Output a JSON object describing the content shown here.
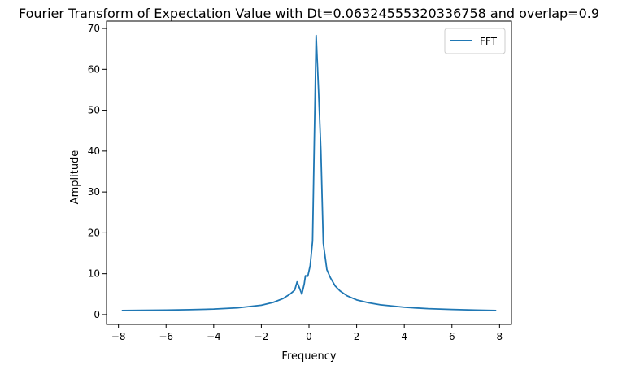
{
  "chart_data": {
    "type": "line",
    "title": "Fourier Transform of Expectation Value with Dt=0.06324555320336758 and overlap=0.9",
    "xlabel": "Frequency",
    "ylabel": "Amplitude",
    "xlim": [
      -8.5,
      8.5
    ],
    "ylim": [
      -2.4,
      71.8
    ],
    "x_ticks": [
      -8,
      -6,
      -4,
      -2,
      0,
      2,
      4,
      6,
      8
    ],
    "x_tick_labels": [
      "−8",
      "−6",
      "−4",
      "−2",
      "0",
      "2",
      "4",
      "6",
      "8"
    ],
    "y_ticks": [
      0,
      10,
      20,
      30,
      40,
      50,
      60,
      70
    ],
    "y_tick_labels": [
      "0",
      "10",
      "20",
      "30",
      "40",
      "50",
      "60",
      "70"
    ],
    "grid": false,
    "legend_position": "top-right",
    "series": [
      {
        "name": "FFT",
        "color": "#1f77b4",
        "points": [
          [
            -7.86,
            1.0
          ],
          [
            -7.0,
            1.05
          ],
          [
            -6.0,
            1.1
          ],
          [
            -5.0,
            1.2
          ],
          [
            -4.0,
            1.35
          ],
          [
            -3.0,
            1.65
          ],
          [
            -2.0,
            2.3
          ],
          [
            -1.5,
            3.0
          ],
          [
            -1.1,
            3.9
          ],
          [
            -0.8,
            5.0
          ],
          [
            -0.6,
            6.0
          ],
          [
            -0.5,
            8.0
          ],
          [
            -0.4,
            6.5
          ],
          [
            -0.3,
            5.0
          ],
          [
            -0.2,
            7.5
          ],
          [
            -0.15,
            9.5
          ],
          [
            -0.05,
            9.4
          ],
          [
            0.05,
            12.0
          ],
          [
            0.15,
            18.0
          ],
          [
            0.2,
            35.0
          ],
          [
            0.3,
            68.3
          ],
          [
            0.4,
            55.0
          ],
          [
            0.5,
            40.0
          ],
          [
            0.6,
            17.5
          ],
          [
            0.75,
            11.0
          ],
          [
            0.9,
            9.0
          ],
          [
            1.1,
            7.0
          ],
          [
            1.3,
            5.8
          ],
          [
            1.6,
            4.6
          ],
          [
            2.0,
            3.6
          ],
          [
            2.5,
            2.9
          ],
          [
            3.0,
            2.4
          ],
          [
            4.0,
            1.8
          ],
          [
            5.0,
            1.45
          ],
          [
            6.0,
            1.25
          ],
          [
            7.0,
            1.1
          ],
          [
            7.86,
            1.0
          ]
        ]
      }
    ]
  }
}
